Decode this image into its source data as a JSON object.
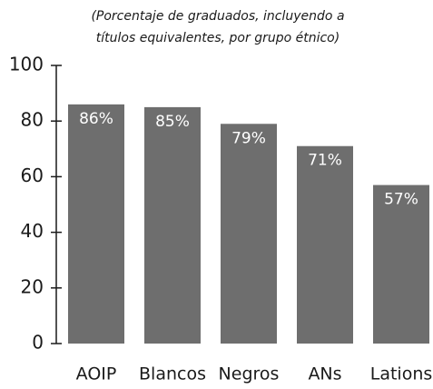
{
  "chart_data": {
    "type": "bar",
    "subtitle_lines": [
      "(Porcentaje de graduados, incluyendo a",
      "títulos equivalentes, por grupo étnico)"
    ],
    "categories": [
      "AOIP",
      "Blancos",
      "Negros",
      "ANs",
      "Lations"
    ],
    "values": [
      86,
      85,
      79,
      71,
      57
    ],
    "value_labels": [
      "86%",
      "85%",
      "79%",
      "71%",
      "57%"
    ],
    "color": "#6e6e6e",
    "ylim": [
      0,
      100
    ],
    "yticks": [
      0,
      20,
      40,
      60,
      80,
      100
    ]
  }
}
